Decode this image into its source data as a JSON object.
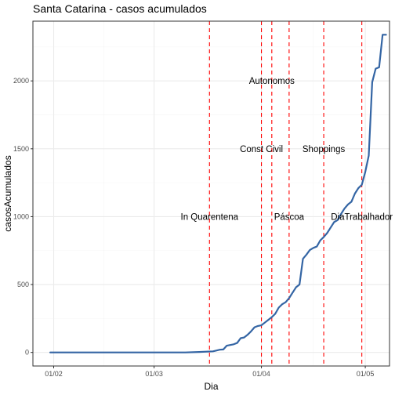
{
  "chart_data": {
    "type": "line",
    "title": "Santa Catarina - casos acumulados",
    "xlabel": "Dia",
    "ylabel": "casosAcumulados",
    "x_type": "date",
    "xlim": [
      "2020-01-26",
      "2020-05-08"
    ],
    "ylim": [
      -100,
      2440
    ],
    "x_ticks": [
      {
        "date": "2020-02-01",
        "label": "01/02"
      },
      {
        "date": "2020-03-01",
        "label": "01/03"
      },
      {
        "date": "2020-04-01",
        "label": "01/04"
      },
      {
        "date": "2020-05-01",
        "label": "01/05"
      }
    ],
    "y_ticks": [
      0,
      500,
      1000,
      1500,
      2000
    ],
    "grid": true,
    "series": [
      {
        "color": "#3465a4",
        "points": [
          [
            "2020-01-31",
            0
          ],
          [
            "2020-03-10",
            0
          ],
          [
            "2020-03-14",
            3
          ],
          [
            "2020-03-18",
            8
          ],
          [
            "2020-03-20",
            20
          ],
          [
            "2020-03-21",
            22
          ],
          [
            "2020-03-22",
            50
          ],
          [
            "2020-03-24",
            60
          ],
          [
            "2020-03-25",
            70
          ],
          [
            "2020-03-26",
            105
          ],
          [
            "2020-03-27",
            110
          ],
          [
            "2020-03-28",
            130
          ],
          [
            "2020-03-29",
            155
          ],
          [
            "2020-03-30",
            185
          ],
          [
            "2020-03-31",
            195
          ],
          [
            "2020-04-01",
            200
          ],
          [
            "2020-04-02",
            220
          ],
          [
            "2020-04-03",
            240
          ],
          [
            "2020-04-04",
            260
          ],
          [
            "2020-04-05",
            285
          ],
          [
            "2020-04-06",
            330
          ],
          [
            "2020-04-07",
            355
          ],
          [
            "2020-04-08",
            370
          ],
          [
            "2020-04-09",
            400
          ],
          [
            "2020-04-10",
            440
          ],
          [
            "2020-04-11",
            480
          ],
          [
            "2020-04-12",
            500
          ],
          [
            "2020-04-13",
            690
          ],
          [
            "2020-04-14",
            720
          ],
          [
            "2020-04-15",
            755
          ],
          [
            "2020-04-16",
            770
          ],
          [
            "2020-04-17",
            780
          ],
          [
            "2020-04-18",
            825
          ],
          [
            "2020-04-19",
            850
          ],
          [
            "2020-04-20",
            880
          ],
          [
            "2020-04-21",
            920
          ],
          [
            "2020-04-22",
            960
          ],
          [
            "2020-04-23",
            975
          ],
          [
            "2020-04-24",
            1020
          ],
          [
            "2020-04-25",
            1060
          ],
          [
            "2020-04-26",
            1090
          ],
          [
            "2020-04-27",
            1110
          ],
          [
            "2020-04-28",
            1170
          ],
          [
            "2020-04-29",
            1210
          ],
          [
            "2020-04-30",
            1235
          ],
          [
            "2020-05-01",
            1330
          ],
          [
            "2020-05-02",
            1450
          ],
          [
            "2020-05-03",
            1990
          ],
          [
            "2020-05-04",
            2090
          ],
          [
            "2020-05-05",
            2100
          ],
          [
            "2020-05-06",
            2340
          ],
          [
            "2020-05-07",
            2340
          ]
        ]
      }
    ],
    "annotations": [
      {
        "date": "2020-03-17",
        "label": "In Quarentena",
        "y": 1000,
        "color": "#ff0000"
      },
      {
        "date": "2020-04-01",
        "label": "Const Civil",
        "y": 1500,
        "color": "#ff0000"
      },
      {
        "date": "2020-04-04",
        "label": "Autonomos",
        "y": 2000,
        "color": "#ff0000"
      },
      {
        "date": "2020-04-09",
        "label": "Páscoa",
        "y": 1000,
        "color": "#ff0000"
      },
      {
        "date": "2020-04-19",
        "label": "Shoppings",
        "y": 1500,
        "color": "#ff0000"
      },
      {
        "date": "2020-04-30",
        "label": "DiaTrabalhador",
        "y": 1000,
        "color": "#ff0000"
      }
    ]
  }
}
